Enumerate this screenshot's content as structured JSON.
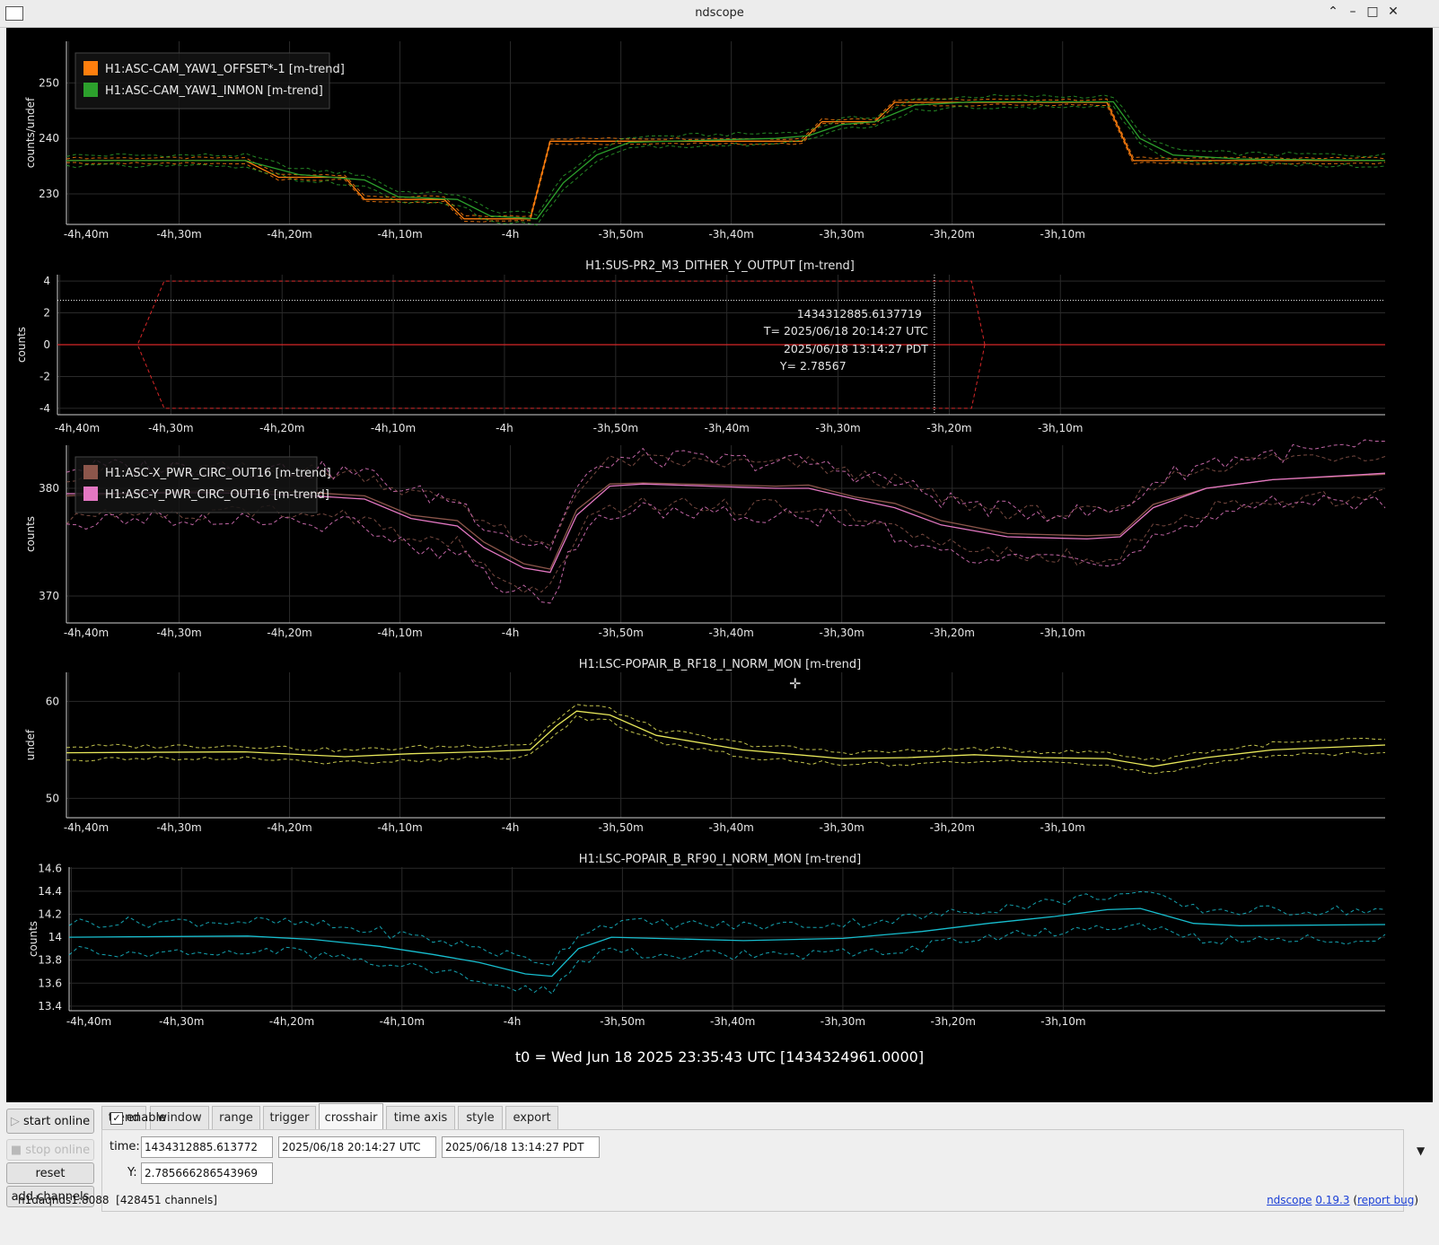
{
  "window": {
    "title": "ndscope",
    "controls": [
      "⌃",
      "–",
      "□",
      "✕"
    ]
  },
  "t0_label": "t0 = Wed Jun 18 2025 23:35:43 UTC [1434324961.0000]",
  "time_ticks": [
    "-4h,40m",
    "-4h,30m",
    "-4h,20m",
    "-4h,10m",
    "-4h",
    "-3h,50m",
    "-3h,40m",
    "-3h,30m",
    "-3h,20m",
    "-3h,10m"
  ],
  "plots": [
    {
      "title": "",
      "ylabel": "counts/undef",
      "yticks": [
        230,
        240,
        250
      ],
      "ylim": [
        224.5,
        257.5
      ],
      "legend": [
        {
          "name": "H1:ASC-CAM_YAW1_OFFSET*-1 [m-trend]",
          "color": "#ff7f0e"
        },
        {
          "name": "H1:ASC-CAM_YAW1_INMON [m-trend]",
          "color": "#2ca02c"
        }
      ],
      "series": [
        {
          "color": "#ff7f0e",
          "min_max_spread": 0.6,
          "points": [
            [
              -4.67,
              236
            ],
            [
              -4.4,
              236
            ],
            [
              -4.35,
              233
            ],
            [
              -4.25,
              233
            ],
            [
              -4.22,
              229
            ],
            [
              -4.1,
              229
            ],
            [
              -4.07,
              225.5
            ],
            [
              -3.97,
              225.5
            ],
            [
              -3.94,
              239.5
            ],
            [
              -3.75,
              239.5
            ],
            [
              -3.68,
              239.5
            ],
            [
              -3.56,
              239.5
            ],
            [
              -3.53,
              243
            ],
            [
              -3.45,
              243
            ],
            [
              -3.42,
              246.5
            ],
            [
              -3.22,
              246.5
            ],
            [
              -3.1,
              246.5
            ],
            [
              -3.06,
              236
            ],
            [
              -2.68,
              236
            ]
          ]
        },
        {
          "color": "#2ca02c",
          "min_max_spread": 1.2,
          "points": [
            [
              -4.67,
              236
            ],
            [
              -4.4,
              236
            ],
            [
              -4.32,
              233.5
            ],
            [
              -4.22,
              232.5
            ],
            [
              -4.17,
              229.5
            ],
            [
              -4.08,
              229
            ],
            [
              -4.03,
              226
            ],
            [
              -3.96,
              225.5
            ],
            [
              -3.92,
              232
            ],
            [
              -3.87,
              237
            ],
            [
              -3.82,
              239.3
            ],
            [
              -3.6,
              240
            ],
            [
              -3.55,
              240.5
            ],
            [
              -3.5,
              242.5
            ],
            [
              -3.45,
              243
            ],
            [
              -3.39,
              246
            ],
            [
              -3.3,
              246.6
            ],
            [
              -3.09,
              246.6
            ],
            [
              -3.05,
              240
            ],
            [
              -3.0,
              237
            ],
            [
              -2.9,
              236.3
            ],
            [
              -2.68,
              236
            ]
          ]
        }
      ]
    },
    {
      "title": "H1:SUS-PR2_M3_DITHER_Y_OUTPUT [m-trend]",
      "ylabel": "counts",
      "yticks": [
        -4,
        -2,
        0,
        2,
        4
      ],
      "ylim": [
        -4.4,
        4.4
      ],
      "legend": [],
      "series": [
        {
          "color": "#d62728",
          "min_max_spread": 0,
          "points": [
            [
              -4.67,
              0
            ],
            [
              -2.68,
              0
            ]
          ]
        }
      ],
      "envelope": {
        "color": "#d62728",
        "max": 4,
        "min": -4,
        "ramp_start": -4.55,
        "ramp_end": -4.53,
        "end": -3.3
      },
      "crosshair": {
        "gps": "1434312885.6137719",
        "utc": "T= 2025/06/18 20:14:27 UTC",
        "local": "2025/06/18 13:14:27 PDT",
        "y_label": "Y= 2.78567",
        "x_value": -3.3556,
        "y_value": 2.78567
      }
    },
    {
      "title": "",
      "ylabel": "counts",
      "yticks": [
        370,
        380
      ],
      "ylim": [
        367.5,
        384
      ],
      "legend": [
        {
          "name": "H1:ASC-X_PWR_CIRC_OUT16 [m-trend]",
          "color": "#8c564b"
        },
        {
          "name": "H1:ASC-Y_PWR_CIRC_OUT16 [m-trend]",
          "color": "#e377c2"
        }
      ],
      "series": [
        {
          "color": "#8c564b",
          "min_max_spread": 2.5,
          "points": [
            [
              -4.67,
              379.3
            ],
            [
              -4.45,
              379.8
            ],
            [
              -4.3,
              379.6
            ],
            [
              -4.22,
              379.3
            ],
            [
              -4.15,
              377.5
            ],
            [
              -4.08,
              377
            ],
            [
              -4.04,
              375
            ],
            [
              -3.98,
              373
            ],
            [
              -3.94,
              372.5
            ],
            [
              -3.9,
              378
            ],
            [
              -3.85,
              380.4
            ],
            [
              -3.8,
              380.5
            ],
            [
              -3.6,
              380.2
            ],
            [
              -3.55,
              380.3
            ],
            [
              -3.48,
              379.2
            ],
            [
              -3.42,
              378.6
            ],
            [
              -3.35,
              377
            ],
            [
              -3.25,
              375.8
            ],
            [
              -3.13,
              375.6
            ],
            [
              -3.08,
              375.7
            ],
            [
              -3.03,
              378.5
            ],
            [
              -2.95,
              380
            ],
            [
              -2.85,
              380.8
            ],
            [
              -2.68,
              381.3
            ]
          ]
        },
        {
          "color": "#e377c2",
          "min_max_spread": 3.0,
          "points": [
            [
              -4.67,
              379.5
            ],
            [
              -4.45,
              379.6
            ],
            [
              -4.3,
              379.3
            ],
            [
              -4.22,
              379
            ],
            [
              -4.15,
              377.2
            ],
            [
              -4.08,
              376.5
            ],
            [
              -4.04,
              374.5
            ],
            [
              -3.98,
              372.6
            ],
            [
              -3.94,
              372.2
            ],
            [
              -3.9,
              377.5
            ],
            [
              -3.85,
              380.2
            ],
            [
              -3.8,
              380.4
            ],
            [
              -3.6,
              380
            ],
            [
              -3.55,
              380
            ],
            [
              -3.48,
              379
            ],
            [
              -3.42,
              378.2
            ],
            [
              -3.35,
              376.6
            ],
            [
              -3.25,
              375.5
            ],
            [
              -3.13,
              375.3
            ],
            [
              -3.08,
              375.5
            ],
            [
              -3.03,
              378.2
            ],
            [
              -2.95,
              380
            ],
            [
              -2.85,
              380.8
            ],
            [
              -2.68,
              381.4
            ]
          ]
        }
      ]
    },
    {
      "title": "H1:LSC-POPAIR_B_RF18_I_NORM_MON [m-trend]",
      "ylabel": "undef",
      "yticks": [
        50,
        60
      ],
      "ylim": [
        48,
        63
      ],
      "legend": [],
      "series": [
        {
          "color": "#e8e85a",
          "min_max_spread": 0.8,
          "points": [
            [
              -4.67,
              54.7
            ],
            [
              -4.4,
              54.8
            ],
            [
              -4.25,
              54.3
            ],
            [
              -4.15,
              54.6
            ],
            [
              -4.05,
              54.8
            ],
            [
              -3.97,
              55
            ],
            [
              -3.93,
              57.5
            ],
            [
              -3.9,
              59
            ],
            [
              -3.85,
              58.6
            ],
            [
              -3.78,
              56.5
            ],
            [
              -3.65,
              55
            ],
            [
              -3.5,
              54.1
            ],
            [
              -3.4,
              54.2
            ],
            [
              -3.3,
              54.5
            ],
            [
              -3.2,
              54.2
            ],
            [
              -3.1,
              54.1
            ],
            [
              -3.03,
              53.3
            ],
            [
              -2.95,
              54.2
            ],
            [
              -2.85,
              55
            ],
            [
              -2.68,
              55.5
            ]
          ]
        }
      ]
    },
    {
      "title": "H1:LSC-POPAIR_B_RF90_I_NORM_MON [m-trend]",
      "ylabel": "counts",
      "yticks": [
        13.4,
        13.6,
        13.8,
        14,
        14.2,
        14.4,
        14.6
      ],
      "ylim": [
        13.36,
        14.61
      ],
      "legend": [],
      "series": [
        {
          "color": "#17becf",
          "min_max_spread": 0.16,
          "points": [
            [
              -4.67,
              14.0
            ],
            [
              -4.4,
              14.01
            ],
            [
              -4.3,
              13.98
            ],
            [
              -4.2,
              13.92
            ],
            [
              -4.12,
              13.85
            ],
            [
              -4.05,
              13.78
            ],
            [
              -3.98,
              13.68
            ],
            [
              -3.94,
              13.66
            ],
            [
              -3.9,
              13.9
            ],
            [
              -3.85,
              14.0
            ],
            [
              -3.65,
              13.97
            ],
            [
              -3.5,
              13.99
            ],
            [
              -3.38,
              14.05
            ],
            [
              -3.28,
              14.12
            ],
            [
              -3.18,
              14.18
            ],
            [
              -3.1,
              14.24
            ],
            [
              -3.05,
              14.25
            ],
            [
              -2.97,
              14.12
            ],
            [
              -2.9,
              14.1
            ],
            [
              -2.68,
              14.11
            ]
          ]
        }
      ]
    }
  ],
  "controls": {
    "start_online": "start online",
    "stop_online": "stop online",
    "reset": "reset",
    "add_channels": "add channels"
  },
  "tabs": [
    "trend",
    "window",
    "range",
    "trigger",
    "crosshair",
    "time axis",
    "style",
    "export"
  ],
  "active_tab": "crosshair",
  "crosshair_panel": {
    "enable_label": "enable",
    "enable_checked": "✓",
    "time_label": "time:",
    "time_gps": "1434312885.613772",
    "time_utc": "2025/06/18 20:14:27 UTC",
    "time_local": "2025/06/18 13:14:27 PDT",
    "y_label": "Y:",
    "y_value": "2.785666286543969"
  },
  "status": {
    "server": "h1daqnds1:8088",
    "channels": "[428451 channels]",
    "app_name": "ndscope",
    "version": "0.19.3",
    "report": "report bug"
  }
}
